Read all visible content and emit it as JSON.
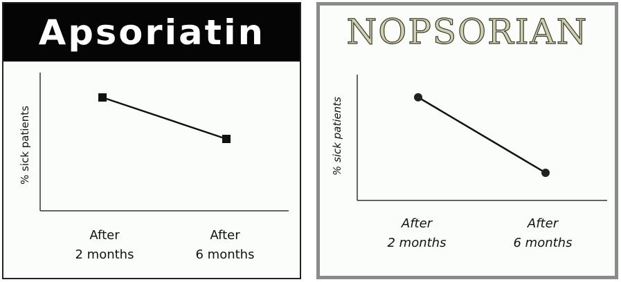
{
  "chart_data": [
    {
      "type": "line",
      "title": "Apsoriatin",
      "ylabel": "% sick patients",
      "categories": [
        "After\n2 months",
        "After\n6 months"
      ],
      "values": [
        82,
        52
      ],
      "ylim": [
        0,
        100
      ],
      "marker": "square",
      "colors": {
        "banner_bg": "#050505",
        "banner_text": "#ffffff",
        "line": "#111111"
      }
    },
    {
      "type": "line",
      "title": "NOPSORIAN",
      "ylabel": "% sick patients",
      "categories": [
        "After\n2 months",
        "After\n6 months"
      ],
      "values": [
        82,
        22
      ],
      "ylim": [
        0,
        100
      ],
      "marker": "circle",
      "colors": {
        "banner_text": "#cfcfb0",
        "line": "#111111",
        "frame": "#8a8a8a"
      }
    }
  ]
}
